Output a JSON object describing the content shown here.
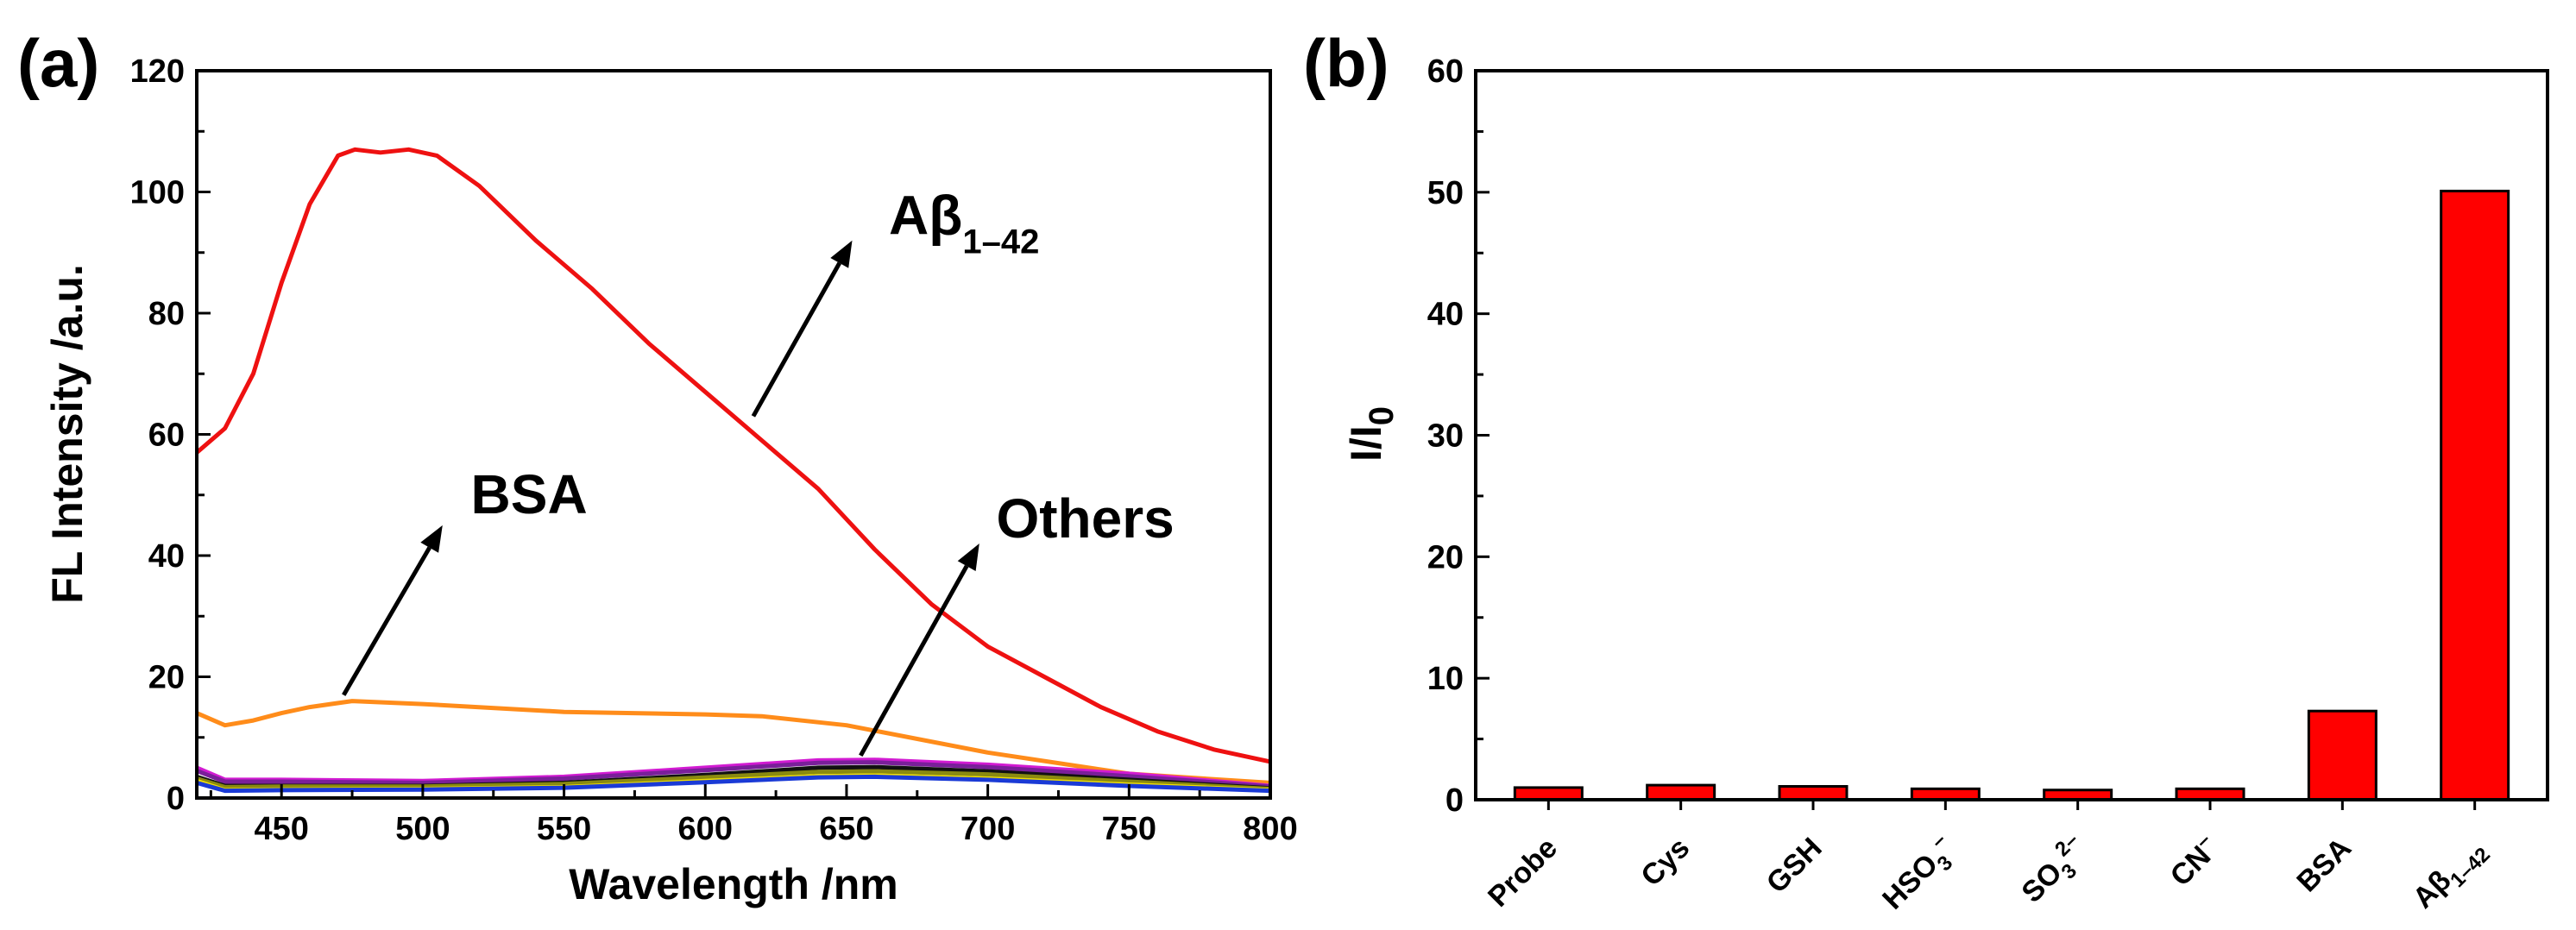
{
  "chart_data": [
    {
      "panel": "(a)",
      "type": "line",
      "xlabel": "Wavelength /nm",
      "ylabel": "FL Intensity /a.u.",
      "xlim": [
        420,
        800
      ],
      "ylim": [
        0,
        120
      ],
      "xticks": [
        450,
        500,
        550,
        600,
        650,
        700,
        750,
        800
      ],
      "yticks": [
        0,
        20,
        40,
        60,
        80,
        100,
        120
      ],
      "series": [
        {
          "name": "Aβ1–42",
          "color": "#ee1111",
          "x": [
            420,
            430,
            440,
            450,
            460,
            470,
            476,
            485,
            495,
            505,
            520,
            540,
            560,
            580,
            600,
            620,
            640,
            650,
            660,
            680,
            700,
            720,
            740,
            760,
            780,
            800
          ],
          "y": [
            57,
            61,
            70,
            85,
            98,
            106,
            107,
            106.5,
            107,
            106,
            101,
            92,
            84,
            75,
            67,
            59,
            51,
            46,
            41,
            32,
            25,
            20,
            15,
            11,
            8,
            6
          ]
        },
        {
          "name": "BSA",
          "color": "#ff8c1a",
          "x": [
            420,
            430,
            440,
            450,
            460,
            475,
            500,
            550,
            600,
            620,
            650,
            700,
            750,
            800
          ],
          "y": [
            14,
            12,
            12.8,
            14,
            15,
            16,
            15.5,
            14.2,
            13.8,
            13.5,
            12,
            7.5,
            4,
            2.5
          ]
        },
        {
          "name": "Others (magenta)",
          "color": "#d21bd2",
          "x": [
            420,
            430,
            450,
            500,
            550,
            600,
            640,
            660,
            700,
            750,
            800
          ],
          "y": [
            5,
            3,
            3,
            2.8,
            3.5,
            5,
            6.2,
            6.3,
            5.5,
            4,
            2
          ]
        },
        {
          "name": "Others (purple)",
          "color": "#7a1f9a",
          "x": [
            420,
            430,
            450,
            500,
            550,
            600,
            640,
            660,
            700,
            750,
            800
          ],
          "y": [
            4.5,
            2.7,
            2.7,
            2.5,
            3.2,
            4.6,
            5.8,
            5.9,
            5.1,
            3.6,
            1.9
          ]
        },
        {
          "name": "Others (black)",
          "color": "#111111",
          "x": [
            420,
            430,
            450,
            500,
            550,
            600,
            640,
            660,
            700,
            750,
            800
          ],
          "y": [
            3.5,
            2,
            2,
            2,
            2.5,
            3.8,
            5,
            5.1,
            4.4,
            3,
            1.6
          ]
        },
        {
          "name": "Others (olive)",
          "color": "#8a8a10",
          "x": [
            420,
            430,
            450,
            500,
            550,
            600,
            640,
            660,
            700,
            750,
            800
          ],
          "y": [
            3.2,
            1.8,
            1.9,
            1.9,
            2.3,
            3.4,
            4.3,
            4.4,
            3.9,
            2.7,
            1.5
          ]
        },
        {
          "name": "Others (yellow)",
          "color": "#f2e000",
          "x": [
            420,
            430,
            450,
            500,
            550,
            600,
            640,
            660,
            700,
            750,
            800
          ],
          "y": [
            2.8,
            1.3,
            1.4,
            1.5,
            1.8,
            2.8,
            3.6,
            3.7,
            3.2,
            2.2,
            1.3
          ]
        },
        {
          "name": "Others (blue)",
          "color": "#1a3ad6",
          "x": [
            420,
            430,
            450,
            500,
            550,
            600,
            640,
            660,
            700,
            750,
            800
          ],
          "y": [
            2.5,
            1.2,
            1.3,
            1.4,
            1.7,
            2.6,
            3.4,
            3.5,
            3,
            2,
            1.2
          ]
        }
      ],
      "annotations": [
        {
          "text": "Aβ",
          "sub": "1–42",
          "arrow_from": [
            617,
            63
          ],
          "arrow_to": [
            652,
            92
          ],
          "text_at": [
            665,
            93
          ]
        },
        {
          "text": "BSA",
          "sub": "",
          "arrow_from": [
            472,
            17
          ],
          "arrow_to": [
            507,
            45
          ],
          "text_at": [
            517,
            47
          ]
        },
        {
          "text": "Others",
          "sub": "",
          "arrow_from": [
            655,
            7
          ],
          "arrow_to": [
            697,
            42
          ],
          "text_at": [
            703,
            43
          ]
        }
      ]
    },
    {
      "panel": "(b)",
      "type": "bar",
      "ylabel": "I/I",
      "ylabel_sub": "0",
      "ylim": [
        0,
        60
      ],
      "yticks": [
        0,
        10,
        20,
        30,
        40,
        50,
        60
      ],
      "bar_color": "#ff0000",
      "categories": [
        {
          "main": "Probe",
          "sub": "",
          "sup": ""
        },
        {
          "main": "Cys",
          "sub": "",
          "sup": ""
        },
        {
          "main": "GSH",
          "sub": "",
          "sup": ""
        },
        {
          "main": "HSO",
          "sub": "3",
          "sup": "–"
        },
        {
          "main": "SO",
          "sub": "3",
          "sup": "2–"
        },
        {
          "main": "CN",
          "sub": "",
          "sup": "–"
        },
        {
          "main": "BSA",
          "sub": "",
          "sup": ""
        },
        {
          "main": "Aβ",
          "sub": "1–42",
          "sup": ""
        }
      ],
      "values": [
        1.0,
        1.2,
        1.1,
        0.9,
        0.8,
        0.9,
        7.3,
        50.1
      ]
    }
  ]
}
